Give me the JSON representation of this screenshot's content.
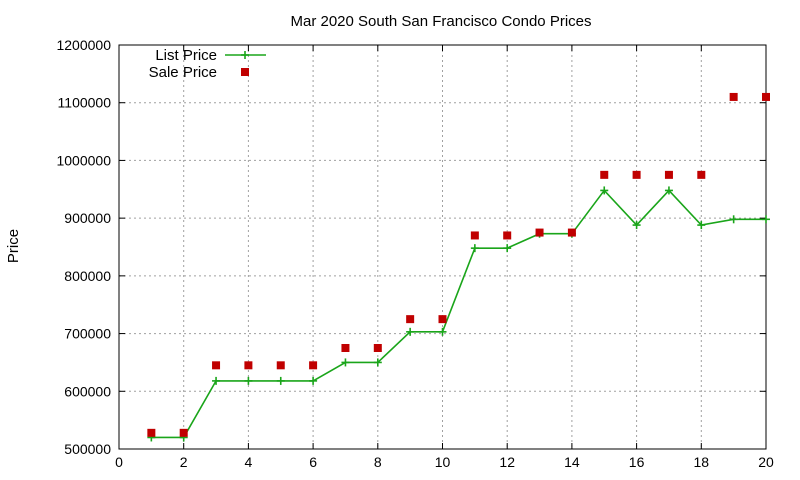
{
  "chart_data": {
    "type": "line",
    "title": "Mar 2020 South San Francisco Condo Prices",
    "xlabel": "",
    "ylabel": "Price",
    "xlim": [
      0,
      20
    ],
    "ylim": [
      500000,
      1200000
    ],
    "xticks": [
      0,
      2,
      4,
      6,
      8,
      10,
      12,
      14,
      16,
      18,
      20
    ],
    "yticks": [
      500000,
      600000,
      700000,
      800000,
      900000,
      1000000,
      1100000,
      1200000
    ],
    "grid": true,
    "legend_position": "top-left",
    "series": [
      {
        "name": "List Price",
        "style": "line-plus",
        "color": "#1aa51a",
        "x": [
          1,
          2,
          3,
          4,
          5,
          6,
          7,
          8,
          9,
          10,
          11,
          12,
          13,
          14,
          15,
          16,
          17,
          18,
          19,
          20
        ],
        "y": [
          520000,
          520000,
          618000,
          618000,
          618000,
          618000,
          650000,
          650000,
          703000,
          703000,
          848000,
          848000,
          873000,
          873000,
          948000,
          888000,
          948000,
          888000,
          898000,
          898000
        ]
      },
      {
        "name": "Sale Price",
        "style": "square-points",
        "color": "#c00000",
        "x": [
          1,
          2,
          3,
          4,
          5,
          6,
          7,
          8,
          9,
          10,
          11,
          12,
          13,
          14,
          15,
          16,
          17,
          18,
          19,
          20
        ],
        "y": [
          528000,
          528000,
          645000,
          645000,
          645000,
          645000,
          675000,
          675000,
          725000,
          725000,
          870000,
          870000,
          875000,
          875000,
          975000,
          975000,
          975000,
          975000,
          1110000,
          1110000
        ]
      }
    ]
  }
}
